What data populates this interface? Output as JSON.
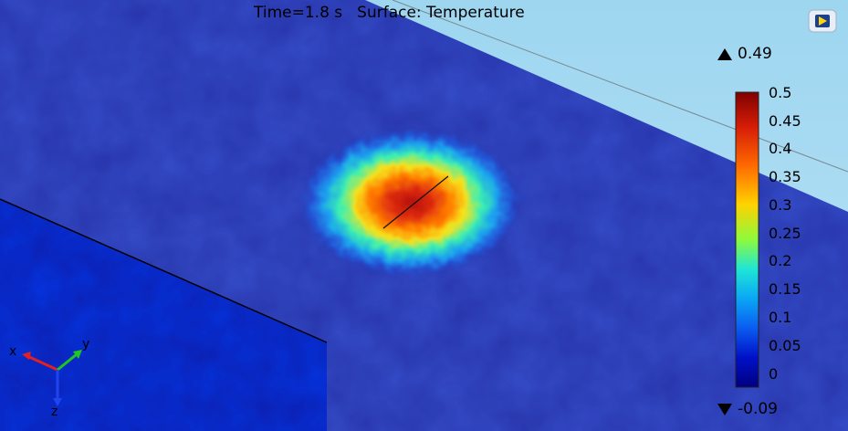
{
  "plot": {
    "time_label": "Time=1.8 s",
    "surface_label": "Surface: Temperature"
  },
  "colorbar": {
    "max_value": "0.49",
    "min_value": "-0.09",
    "ticks": [
      "0.5",
      "0.45",
      "0.4",
      "0.35",
      "0.3",
      "0.25",
      "0.2",
      "0.15",
      "0.1",
      "0.05",
      "0"
    ],
    "colors": [
      "#7f0000",
      "#d71e07",
      "#ff6a00",
      "#ffd200",
      "#8dfa3c",
      "#1ee6d6",
      "#0aa6f5",
      "#0a5cf0",
      "#0010c8",
      "#00007f"
    ]
  },
  "triad": {
    "x_label": "x",
    "y_label": "y",
    "z_label": "z",
    "x_color": "#e32020",
    "y_color": "#1ec61e",
    "z_color": "#2244ee"
  },
  "scene_colors": {
    "background_top": "#9ed6f0",
    "background_bottom": "#b8e2f6",
    "plate_field": "#2233a8",
    "side_face": "#0a1cae"
  },
  "logo": {
    "name": "comsol-logo-icon"
  }
}
